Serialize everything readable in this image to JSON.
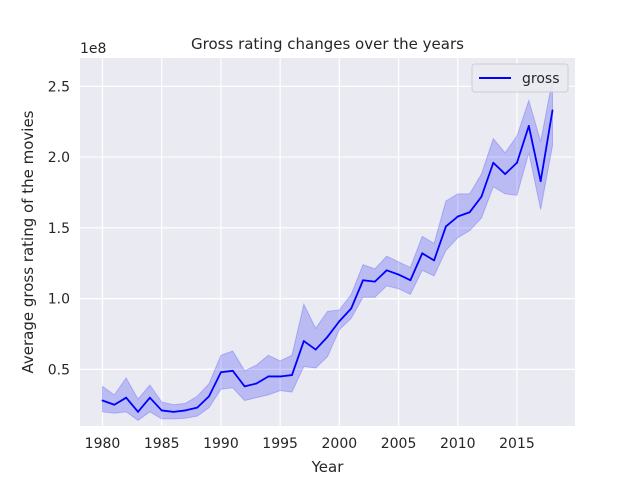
{
  "chart_data": {
    "type": "line",
    "title": "Gross rating changes over the years",
    "xlabel": "Year",
    "ylabel": "Average gross rating of the movies",
    "y_offset_label": "1e8",
    "xlim": [
      1978.1,
      2019.9
    ],
    "ylim": [
      1.0,
      27.0
    ],
    "y_unit_multiplier": 100000000,
    "x_ticks": [
      1980,
      1985,
      1990,
      1995,
      2000,
      2005,
      2010,
      2015
    ],
    "y_ticks": [
      0.5,
      1.0,
      1.5,
      2.0,
      2.5
    ],
    "y_tick_labels": [
      "0.5",
      "1.0",
      "1.5",
      "2.0",
      "2.5"
    ],
    "grid": true,
    "legend_position": "top-right",
    "series": [
      {
        "name": "gross",
        "color": "#0000ff",
        "band_color": "#0000ff",
        "x": [
          1980,
          1981,
          1982,
          1983,
          1984,
          1985,
          1986,
          1987,
          1988,
          1989,
          1990,
          1991,
          1992,
          1993,
          1994,
          1995,
          1996,
          1997,
          1998,
          1999,
          2000,
          2001,
          2002,
          2003,
          2004,
          2005,
          2006,
          2007,
          2008,
          2009,
          2010,
          2011,
          2012,
          2013,
          2014,
          2015,
          2016,
          2017,
          2018
        ],
        "values": [
          0.28,
          0.25,
          0.3,
          0.2,
          0.3,
          0.21,
          0.2,
          0.21,
          0.23,
          0.31,
          0.48,
          0.49,
          0.38,
          0.4,
          0.45,
          0.45,
          0.46,
          0.7,
          0.64,
          0.73,
          0.84,
          0.93,
          1.13,
          1.12,
          1.2,
          1.17,
          1.13,
          1.32,
          1.27,
          1.51,
          1.58,
          1.61,
          1.72,
          1.96,
          1.88,
          1.96,
          2.22,
          1.83,
          2.33
        ],
        "lower": [
          0.2,
          0.19,
          0.2,
          0.14,
          0.2,
          0.15,
          0.15,
          0.155,
          0.17,
          0.23,
          0.36,
          0.37,
          0.28,
          0.3,
          0.32,
          0.35,
          0.34,
          0.52,
          0.51,
          0.59,
          0.78,
          0.86,
          1.01,
          1.01,
          1.09,
          1.07,
          1.03,
          1.2,
          1.16,
          1.34,
          1.43,
          1.48,
          1.57,
          1.79,
          1.74,
          1.73,
          2.03,
          1.63,
          2.08
        ],
        "upper": [
          0.38,
          0.32,
          0.44,
          0.29,
          0.39,
          0.27,
          0.25,
          0.26,
          0.31,
          0.4,
          0.6,
          0.63,
          0.49,
          0.53,
          0.6,
          0.56,
          0.6,
          0.96,
          0.79,
          0.91,
          0.92,
          1.03,
          1.24,
          1.21,
          1.3,
          1.26,
          1.22,
          1.44,
          1.39,
          1.69,
          1.74,
          1.74,
          1.88,
          2.13,
          2.03,
          2.15,
          2.4,
          2.11,
          2.55
        ]
      }
    ]
  }
}
